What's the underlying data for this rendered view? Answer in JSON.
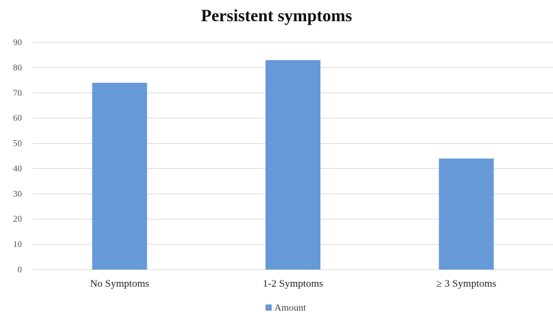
{
  "chart_data": {
    "type": "bar",
    "title": "Persistent symptoms",
    "categories": [
      "No Symptoms",
      "1-2 Symptoms",
      "≥ 3 Symptoms"
    ],
    "series": [
      {
        "name": "Amount",
        "values": [
          74,
          83,
          44
        ],
        "color": "#6699d8"
      }
    ],
    "ylim": [
      0,
      90
    ],
    "yticks": [
      0,
      10,
      20,
      30,
      40,
      50,
      60,
      70,
      80,
      90
    ],
    "grid": true,
    "legend_position": "bottom"
  }
}
